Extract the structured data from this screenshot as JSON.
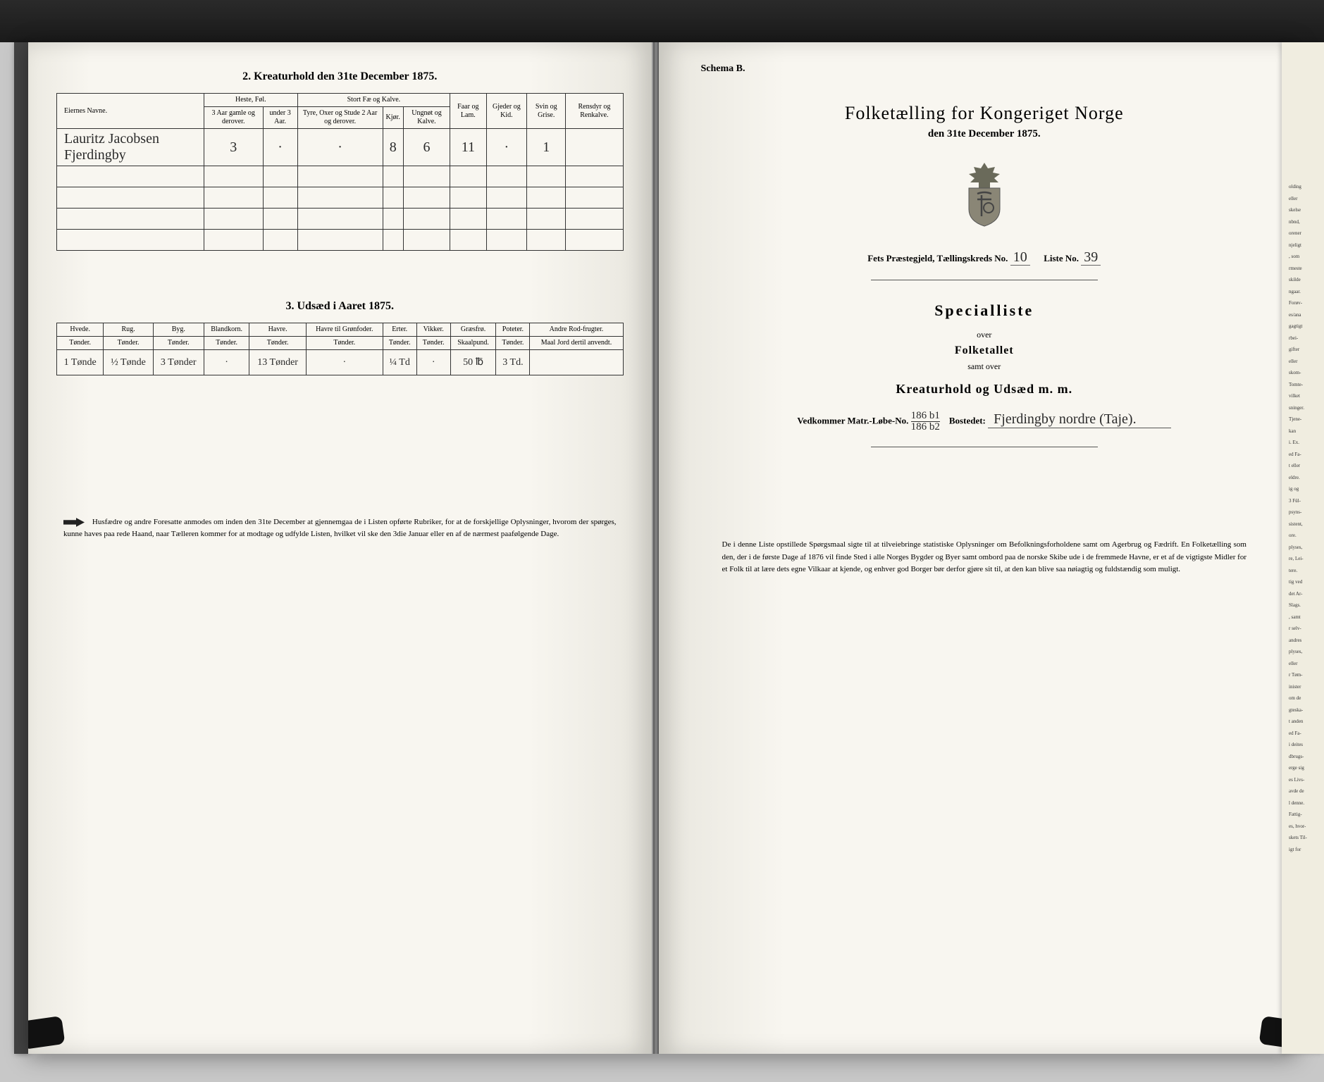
{
  "left": {
    "table2": {
      "title": "2.  Kreaturhold den 31te December 1875.",
      "col_owner": "Eiernes Navne.",
      "grp_horses": "Heste, Føl.",
      "col_h1": "3 Aar gamle og derover.",
      "col_h2": "under 3 Aar.",
      "grp_cattle": "Stort Fæ og Kalve.",
      "col_c1": "Tyre, Oxer og Stude 2 Aar og derover.",
      "col_c2": "Kjør.",
      "col_c3": "Ungnøt og Kalve.",
      "col_sheep": "Faar og Lam.",
      "col_goat": "Gjeder og Kid.",
      "col_pig": "Svin og Grise.",
      "col_reindeer": "Rensdyr og Renkalve.",
      "row1": {
        "owner": "Lauritz Jacobsen Fjerdingby",
        "h1": "3",
        "h2": "·",
        "c1": "·",
        "c2": "8",
        "c3": "6",
        "sheep": "11",
        "goat": "·",
        "pig": "1",
        "reindeer": ""
      }
    },
    "table3": {
      "title": "3.  Udsæd i Aaret 1875.",
      "cols": {
        "wheat": "Hvede.",
        "wheat_u": "Tønder.",
        "rye": "Rug.",
        "rye_u": "Tønder.",
        "barley": "Byg.",
        "barley_u": "Tønder.",
        "mixed": "Blandkorn.",
        "mixed_u": "Tønder.",
        "oats": "Havre.",
        "oats_u": "Tønder.",
        "oats_fodder": "Havre til Grønfoder.",
        "oats_fodder_u": "Tønder.",
        "peas": "Erter.",
        "peas_u": "Tønder.",
        "vetch": "Vikker.",
        "vetch_u": "Tønder.",
        "grass": "Græsfrø.",
        "grass_u": "Skaalpund.",
        "potato": "Poteter.",
        "potato_u": "Tønder.",
        "other": "Andre Rod-frugter.",
        "other_u": "Maal Jord dertil anvendt."
      },
      "row1": {
        "wheat": "1 Tønde",
        "rye": "½ Tønde",
        "barley": "3 Tønder",
        "mixed": "·",
        "oats": "13 Tønder",
        "oats_fodder": "·",
        "peas": "¼ Td",
        "vetch": "·",
        "grass": "50 ℔",
        "potato": "3 Td.",
        "other": ""
      }
    },
    "footnote": "Husfædre og andre Foresatte anmodes om inden den 31te December at gjennemgaa de i Listen opførte Rubriker, for at de forskjellige Oplysninger, hvorom der spørges, kunne haves paa rede Haand, naar Tælleren kommer for at modtage og udfylde Listen, hvilket vil ske den 3die Januar eller en af de nærmest paafølgende Dage."
  },
  "right": {
    "schema": "Schema B.",
    "main_title": "Folketælling for Kongeriget Norge",
    "date_line": "den 31te December 1875.",
    "parish_label": "Fets Præstegjeld, Tællingskreds No.",
    "parish_no": "10",
    "list_label": "Liste No.",
    "list_no": "39",
    "spec_title": "Specialliste",
    "spec_over": "over",
    "spec_folk": "Folketallet",
    "spec_samt": "samt over",
    "spec_kreat": "Kreaturhold og Udsæd m. m.",
    "matr_label": "Vedkommer Matr.-Løbe-No.",
    "matr_no_top": "186 b1",
    "matr_no_bot": "186 b2",
    "bosted_label": "Bostedet:",
    "bosted_val": "Fjerdingby nordre (Taje).",
    "footnote": "De i denne Liste opstillede Spørgsmaal sigte til at tilveiebringe statistiske Oplysninger om Befolkningsforholdene samt om Agerbrug og Fædrift.  En Folketælling som den, der i de første Dage af 1876 vil finde Sted i alle Norges Bygder og Byer samt ombord paa de norske Skibe ude i de fremmede Havne, er et af de vigtigste Midler for et Folk til at lære dets egne Vilkaar at kjende, og enhver god Borger bør derfor gjøre sit til, at den kan blive saa nøiagtig og fuldstændig som muligt."
  },
  "peek_lines": [
    "olding",
    "eller",
    "skelse",
    "nbnd,",
    "orener",
    "njeligt",
    ", som",
    "rmeste",
    "skilde",
    "ngaar.",
    "Forøv-",
    "es/ana",
    "gagtigt",
    "rbei-",
    "gifter",
    "eller",
    "skom-",
    "Tomte-",
    "vilket",
    "sninger.",
    "Tjene-",
    "kan",
    "i. Ex.",
    "ed Fa-",
    "t eller",
    "eldre.",
    "ig og",
    "3 Fül-",
    "psyns-",
    "sistent,",
    "ore.",
    "plyses,",
    "re, Lei-",
    "tere.",
    "tig ved",
    "det Ar-",
    "Slags.",
    ", samt",
    "r selv-",
    "andres",
    "plyses,",
    "eller",
    "r Tøm-",
    "inister",
    "om de",
    "gteska-",
    "t anden",
    "ed Fa-",
    "i deites",
    "dbrugs-",
    "erge sig",
    "es Livs-",
    "avde de",
    "l denne.",
    "Fattig-",
    "es, hvor-",
    "skets Til-",
    "igt for"
  ]
}
